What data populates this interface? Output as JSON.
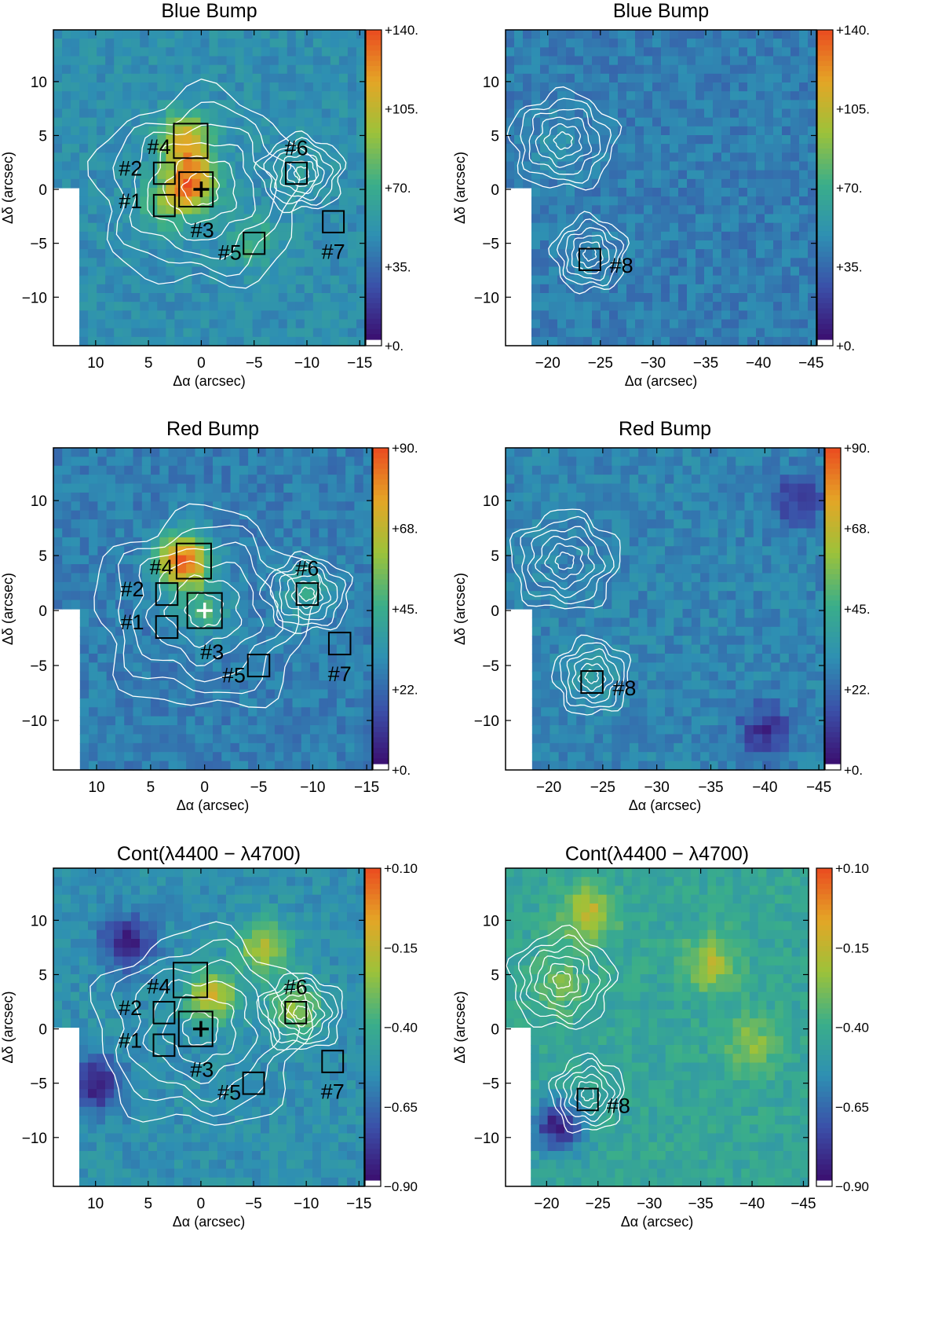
{
  "figure": {
    "description_free": true
  },
  "chart_data": [
    {
      "type": "heatmap",
      "panel": "top-left",
      "title": "Blue Bump",
      "xlabel": "Δα (arcsec)",
      "ylabel": "Δδ (arcsec)",
      "xlim": [
        14,
        -15.5
      ],
      "ylim": [
        -14.5,
        14.8
      ],
      "xticks": [
        10,
        5,
        0,
        -5,
        -10,
        -15
      ],
      "xtick_labels": [
        "10",
        "5",
        "0",
        "−5",
        "−10",
        "−15"
      ],
      "yticks": [
        10,
        5,
        0,
        -5,
        -10
      ],
      "ytick_labels": [
        "10",
        "5",
        "0",
        "−5",
        "−10"
      ],
      "colorbar": {
        "min": 0,
        "max": 140,
        "ticks": [
          0,
          35,
          70,
          105,
          140
        ],
        "labels": [
          "+0.",
          "+35.",
          "+70.",
          "+105.",
          "+140."
        ]
      },
      "blank_region": {
        "x": [
          11.5,
          14
        ],
        "y": [
          -14.5,
          0
        ]
      },
      "hotspots": [
        {
          "x": 1,
          "y": 0.5,
          "v": 125
        },
        {
          "x": 1.5,
          "y": 4.5,
          "v": 115
        },
        {
          "x": 3.5,
          "y": -1.5,
          "v": 75
        },
        {
          "x": -5,
          "y": -5,
          "v": 72
        },
        {
          "x": -9,
          "y": 1.5,
          "v": 55
        }
      ],
      "base_level": 48,
      "contour_centers": [
        {
          "x": 0,
          "y": 0,
          "rx": 10,
          "ry": 9
        },
        {
          "x": -9.5,
          "y": 1.5,
          "rx": 4,
          "ry": 3.5
        }
      ],
      "regions": [
        {
          "id": "#1",
          "x": 3.5,
          "y": -1.5,
          "size": 2,
          "label_dx": -3.2,
          "label_dy": -0.5
        },
        {
          "id": "#2",
          "x": 3.5,
          "y": 1.5,
          "size": 2,
          "label_dx": -3.2,
          "label_dy": -0.5
        },
        {
          "id": "#3",
          "x": 0.5,
          "y": 0,
          "size": 3.2,
          "label_dx": 0.6,
          "label_dy": 3.7
        },
        {
          "id": "#4",
          "x": 1,
          "y": 4.5,
          "size": 3.2,
          "label_dx": -3,
          "label_dy": 0.5
        },
        {
          "id": "#5",
          "x": -5,
          "y": -5,
          "size": 2,
          "label_dx": -2.3,
          "label_dy": 0.8
        },
        {
          "id": "#6",
          "x": -9,
          "y": 1.5,
          "size": 2,
          "label_dx": 0,
          "label_dy": -2.4
        },
        {
          "id": "#7",
          "x": -12.5,
          "y": -3,
          "size": 2,
          "label_dx": 0,
          "label_dy": 2.7
        }
      ],
      "nucleus": {
        "x": 0,
        "y": 0,
        "color": "#000000"
      }
    },
    {
      "type": "heatmap",
      "panel": "top-right",
      "title": "Blue Bump",
      "xlabel": "Δα (arcsec)",
      "ylabel": "Δδ (arcsec)",
      "xlim": [
        -16,
        -45.5
      ],
      "ylim": [
        -14.5,
        14.8
      ],
      "xticks": [
        -20,
        -25,
        -30,
        -35,
        -40,
        -45
      ],
      "xtick_labels": [
        "−20",
        "−25",
        "−30",
        "−35",
        "−40",
        "−45"
      ],
      "yticks": [
        10,
        5,
        0,
        -5,
        -10
      ],
      "ytick_labels": [
        "10",
        "5",
        "0",
        "−5",
        "−10"
      ],
      "colorbar": {
        "min": 0,
        "max": 140,
        "ticks": [
          0,
          35,
          70,
          105,
          140
        ],
        "labels": [
          "+0.",
          "+35.",
          "+70.",
          "+105.",
          "+140."
        ]
      },
      "blank_region": {
        "x": [
          -18.5,
          -16
        ],
        "y": [
          -14.5,
          0
        ]
      },
      "hotspots": [
        {
          "x": -21,
          "y": 4,
          "v": 50
        },
        {
          "x": -24,
          "y": -6,
          "v": 45
        }
      ],
      "base_level": 40,
      "contour_centers": [
        {
          "x": -21.5,
          "y": 4.5,
          "rx": 5,
          "ry": 4.5
        },
        {
          "x": -24,
          "y": -6,
          "rx": 3.5,
          "ry": 3.5
        }
      ],
      "regions": [
        {
          "id": "#8",
          "x": -24,
          "y": -6.5,
          "size": 2,
          "label_dx": 3,
          "label_dy": 0.5
        }
      ]
    },
    {
      "type": "heatmap",
      "panel": "middle-left",
      "title": "Red Bump",
      "xlabel": "Δα (arcsec)",
      "ylabel": "Δδ (arcsec)",
      "xlim": [
        14,
        -15.5
      ],
      "ylim": [
        -14.5,
        14.8
      ],
      "xticks": [
        10,
        5,
        0,
        -5,
        -10,
        -15
      ],
      "xtick_labels": [
        "10",
        "5",
        "0",
        "−5",
        "−10",
        "−15"
      ],
      "yticks": [
        10,
        5,
        0,
        -5,
        -10
      ],
      "ytick_labels": [
        "10",
        "5",
        "0",
        "−5",
        "−10"
      ],
      "colorbar": {
        "min": 0,
        "max": 90,
        "ticks": [
          0,
          22.5,
          45,
          67.5,
          90
        ],
        "labels": [
          "+0.",
          "+22.",
          "+45.",
          "+68.",
          "+90."
        ]
      },
      "blank_region": {
        "x": [
          11.5,
          14
        ],
        "y": [
          -14.5,
          0
        ]
      },
      "hotspots": [
        {
          "x": 2,
          "y": 4.5,
          "v": 85
        },
        {
          "x": 0,
          "y": 0,
          "v": 45
        },
        {
          "x": -9.5,
          "y": 1.5,
          "v": 40
        }
      ],
      "base_level": 26,
      "contour_centers": [
        {
          "x": 0,
          "y": 0,
          "rx": 10,
          "ry": 9
        },
        {
          "x": -9.5,
          "y": 1.5,
          "rx": 4,
          "ry": 3.5
        }
      ],
      "regions": [
        {
          "id": "#1",
          "x": 3.5,
          "y": -1.5,
          "size": 2,
          "label_dx": -3.2,
          "label_dy": -0.5
        },
        {
          "id": "#2",
          "x": 3.5,
          "y": 1.5,
          "size": 2,
          "label_dx": -3.2,
          "label_dy": -0.5
        },
        {
          "id": "#3",
          "x": 0,
          "y": 0,
          "size": 3.2,
          "label_dx": 0.7,
          "label_dy": 3.7
        },
        {
          "id": "#4",
          "x": 1,
          "y": 4.5,
          "size": 3.2,
          "label_dx": -3,
          "label_dy": 0.5
        },
        {
          "id": "#5",
          "x": -5,
          "y": -5,
          "size": 2,
          "label_dx": -2.3,
          "label_dy": 0.8
        },
        {
          "id": "#6",
          "x": -9.5,
          "y": 1.5,
          "size": 2,
          "label_dx": 0,
          "label_dy": -2.4
        },
        {
          "id": "#7",
          "x": -12.5,
          "y": -3,
          "size": 2,
          "label_dx": 0,
          "label_dy": 2.7
        }
      ],
      "nucleus": {
        "x": 0,
        "y": 0,
        "color": "#ffffff"
      }
    },
    {
      "type": "heatmap",
      "panel": "middle-right",
      "title": "Red Bump",
      "xlabel": "Δα (arcsec)",
      "ylabel": "Δδ (arcsec)",
      "xlim": [
        -16,
        -45.5
      ],
      "ylim": [
        -14.5,
        14.8
      ],
      "xticks": [
        -20,
        -25,
        -30,
        -35,
        -40,
        -45
      ],
      "xtick_labels": [
        "−20",
        "−25",
        "−30",
        "−35",
        "−40",
        "−45"
      ],
      "yticks": [
        10,
        5,
        0,
        -5,
        -10
      ],
      "ytick_labels": [
        "10",
        "5",
        "0",
        "−5",
        "−10"
      ],
      "colorbar": {
        "min": 0,
        "max": 90,
        "ticks": [
          0,
          22.5,
          45,
          67.5,
          90
        ],
        "labels": [
          "+0.",
          "+22.",
          "+45.",
          "+68.",
          "+90."
        ]
      },
      "blank_region": {
        "x": [
          -18.5,
          -16
        ],
        "y": [
          -14.5,
          0
        ]
      },
      "hotspots": [
        {
          "x": -24,
          "y": -6,
          "v": 35
        },
        {
          "x": -40,
          "y": -11,
          "v": 8
        },
        {
          "x": -43,
          "y": 10,
          "v": 10
        }
      ],
      "base_level": 28,
      "contour_centers": [
        {
          "x": -21.5,
          "y": 4.5,
          "rx": 5,
          "ry": 4.5
        },
        {
          "x": -24,
          "y": -6,
          "rx": 3.5,
          "ry": 3.5
        }
      ],
      "regions": [
        {
          "id": "#8",
          "x": -24,
          "y": -6.5,
          "size": 2,
          "label_dx": 3,
          "label_dy": 0.5
        }
      ]
    },
    {
      "type": "heatmap",
      "panel": "bottom-left",
      "title": "Cont(λ4400 − λ4700)",
      "xlabel": "Δα (arcsec)",
      "ylabel": "Δδ (arcsec)",
      "xlim": [
        14,
        -15.5
      ],
      "ylim": [
        -14.5,
        14.8
      ],
      "xticks": [
        10,
        5,
        0,
        -5,
        -10,
        -15
      ],
      "xtick_labels": [
        "10",
        "5",
        "0",
        "−5",
        "−10",
        "−15"
      ],
      "yticks": [
        10,
        5,
        0,
        -5,
        -10
      ],
      "ytick_labels": [
        "10",
        "5",
        "0",
        "−5",
        "−10"
      ],
      "colorbar": {
        "min": -0.9,
        "max": 0.1,
        "ticks": [
          -0.9,
          -0.65,
          -0.4,
          -0.15,
          0.1
        ],
        "labels": [
          "−0.90",
          "−0.65",
          "−0.40",
          "−0.15",
          "+0.10"
        ]
      },
      "blank_region": {
        "x": [
          11.5,
          14
        ],
        "y": [
          -14.5,
          0
        ]
      },
      "hotspots": [
        {
          "x": -1,
          "y": 3,
          "v": -0.15
        },
        {
          "x": -6,
          "y": 7.5,
          "v": -0.2
        },
        {
          "x": -9,
          "y": 2,
          "v": -0.25
        },
        {
          "x": 10,
          "y": -5,
          "v": -0.88
        },
        {
          "x": 7,
          "y": 8,
          "v": -0.85
        }
      ],
      "base_level": -0.55,
      "contour_centers": [
        {
          "x": 0,
          "y": 0,
          "rx": 10,
          "ry": 9
        },
        {
          "x": -9.5,
          "y": 1.5,
          "rx": 4,
          "ry": 3.5
        }
      ],
      "regions": [
        {
          "id": "#1",
          "x": 3.5,
          "y": -1.5,
          "size": 2,
          "label_dx": -3.2,
          "label_dy": -0.5
        },
        {
          "id": "#2",
          "x": 3.5,
          "y": 1.5,
          "size": 2,
          "label_dx": -3.2,
          "label_dy": -0.5
        },
        {
          "id": "#3",
          "x": 0.5,
          "y": 0,
          "size": 3.2,
          "label_dx": 0.6,
          "label_dy": 3.7
        },
        {
          "id": "#4",
          "x": 1,
          "y": 4.5,
          "size": 3.2,
          "label_dx": -3,
          "label_dy": 0.5
        },
        {
          "id": "#5",
          "x": -5,
          "y": -5,
          "size": 2,
          "label_dx": -2.3,
          "label_dy": 0.8
        },
        {
          "id": "#6",
          "x": -9,
          "y": 1.5,
          "size": 2,
          "label_dx": 0,
          "label_dy": -2.4
        },
        {
          "id": "#7",
          "x": -12.5,
          "y": -3,
          "size": 2,
          "label_dx": 0,
          "label_dy": 2.7
        }
      ],
      "nucleus": {
        "x": 0,
        "y": 0,
        "color": "#000000"
      }
    },
    {
      "type": "heatmap",
      "panel": "bottom-right",
      "title": "Cont(λ4400 − λ4700)",
      "xlabel": "Δα (arcsec)",
      "ylabel": "Δδ (arcsec)",
      "xlim": [
        -16,
        -45.5
      ],
      "ylim": [
        -14.5,
        14.8
      ],
      "xticks": [
        -20,
        -25,
        -30,
        -35,
        -40,
        -45
      ],
      "xtick_labels": [
        "−20",
        "−25",
        "−30",
        "−35",
        "−40",
        "−45"
      ],
      "yticks": [
        10,
        5,
        0,
        -5,
        -10
      ],
      "ytick_labels": [
        "10",
        "5",
        "0",
        "−5",
        "−10"
      ],
      "colorbar": {
        "min": -0.9,
        "max": 0.1,
        "ticks": [
          -0.9,
          -0.65,
          -0.4,
          -0.15,
          0.1
        ],
        "labels": [
          "−0.90",
          "−0.65",
          "−0.40",
          "−0.15",
          "+0.10"
        ]
      },
      "blank_region": {
        "x": [
          -18.5,
          -16
        ],
        "y": [
          -14.5,
          0
        ]
      },
      "hotspots": [
        {
          "x": -24,
          "y": 10.5,
          "v": -0.15
        },
        {
          "x": -21,
          "y": 4,
          "v": -0.3
        },
        {
          "x": -36,
          "y": 6,
          "v": -0.2
        },
        {
          "x": -40,
          "y": -1.5,
          "v": -0.25
        },
        {
          "x": -21,
          "y": -9,
          "v": -0.85
        }
      ],
      "base_level": -0.45,
      "contour_centers": [
        {
          "x": -21.5,
          "y": 4.5,
          "rx": 5,
          "ry": 4.5
        },
        {
          "x": -24,
          "y": -6,
          "rx": 3.5,
          "ry": 3.5
        }
      ],
      "regions": [
        {
          "id": "#8",
          "x": -24,
          "y": -6.5,
          "size": 2,
          "label_dx": 3,
          "label_dy": 0.5
        }
      ]
    }
  ],
  "colormap": [
    "#3b0f70",
    "#3b4fa8",
    "#2e8fb3",
    "#3aae8a",
    "#9cc23a",
    "#e4a626",
    "#ea4a20"
  ]
}
